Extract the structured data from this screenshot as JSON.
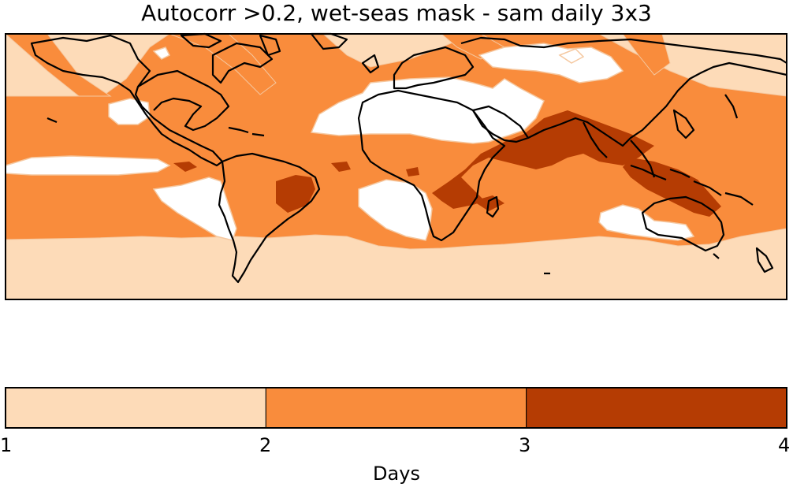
{
  "title": "Autocorr >0.2, wet-seas mask - sam daily 3x3",
  "legend": {
    "title": "Days",
    "ticks": [
      "1",
      "2",
      "3",
      "4"
    ],
    "bins": [
      {
        "from": 1,
        "to": 2,
        "color": "#fddbb8"
      },
      {
        "from": 2,
        "to": 3,
        "color": "#f98c3c"
      },
      {
        "from": 3,
        "to": 4,
        "color": "#b53c03"
      }
    ]
  },
  "colors": {
    "light": "#fddbb8",
    "medium": "#f98c3c",
    "dark": "#b53c03",
    "masked": "#ffffff",
    "coast": "#000000"
  }
}
